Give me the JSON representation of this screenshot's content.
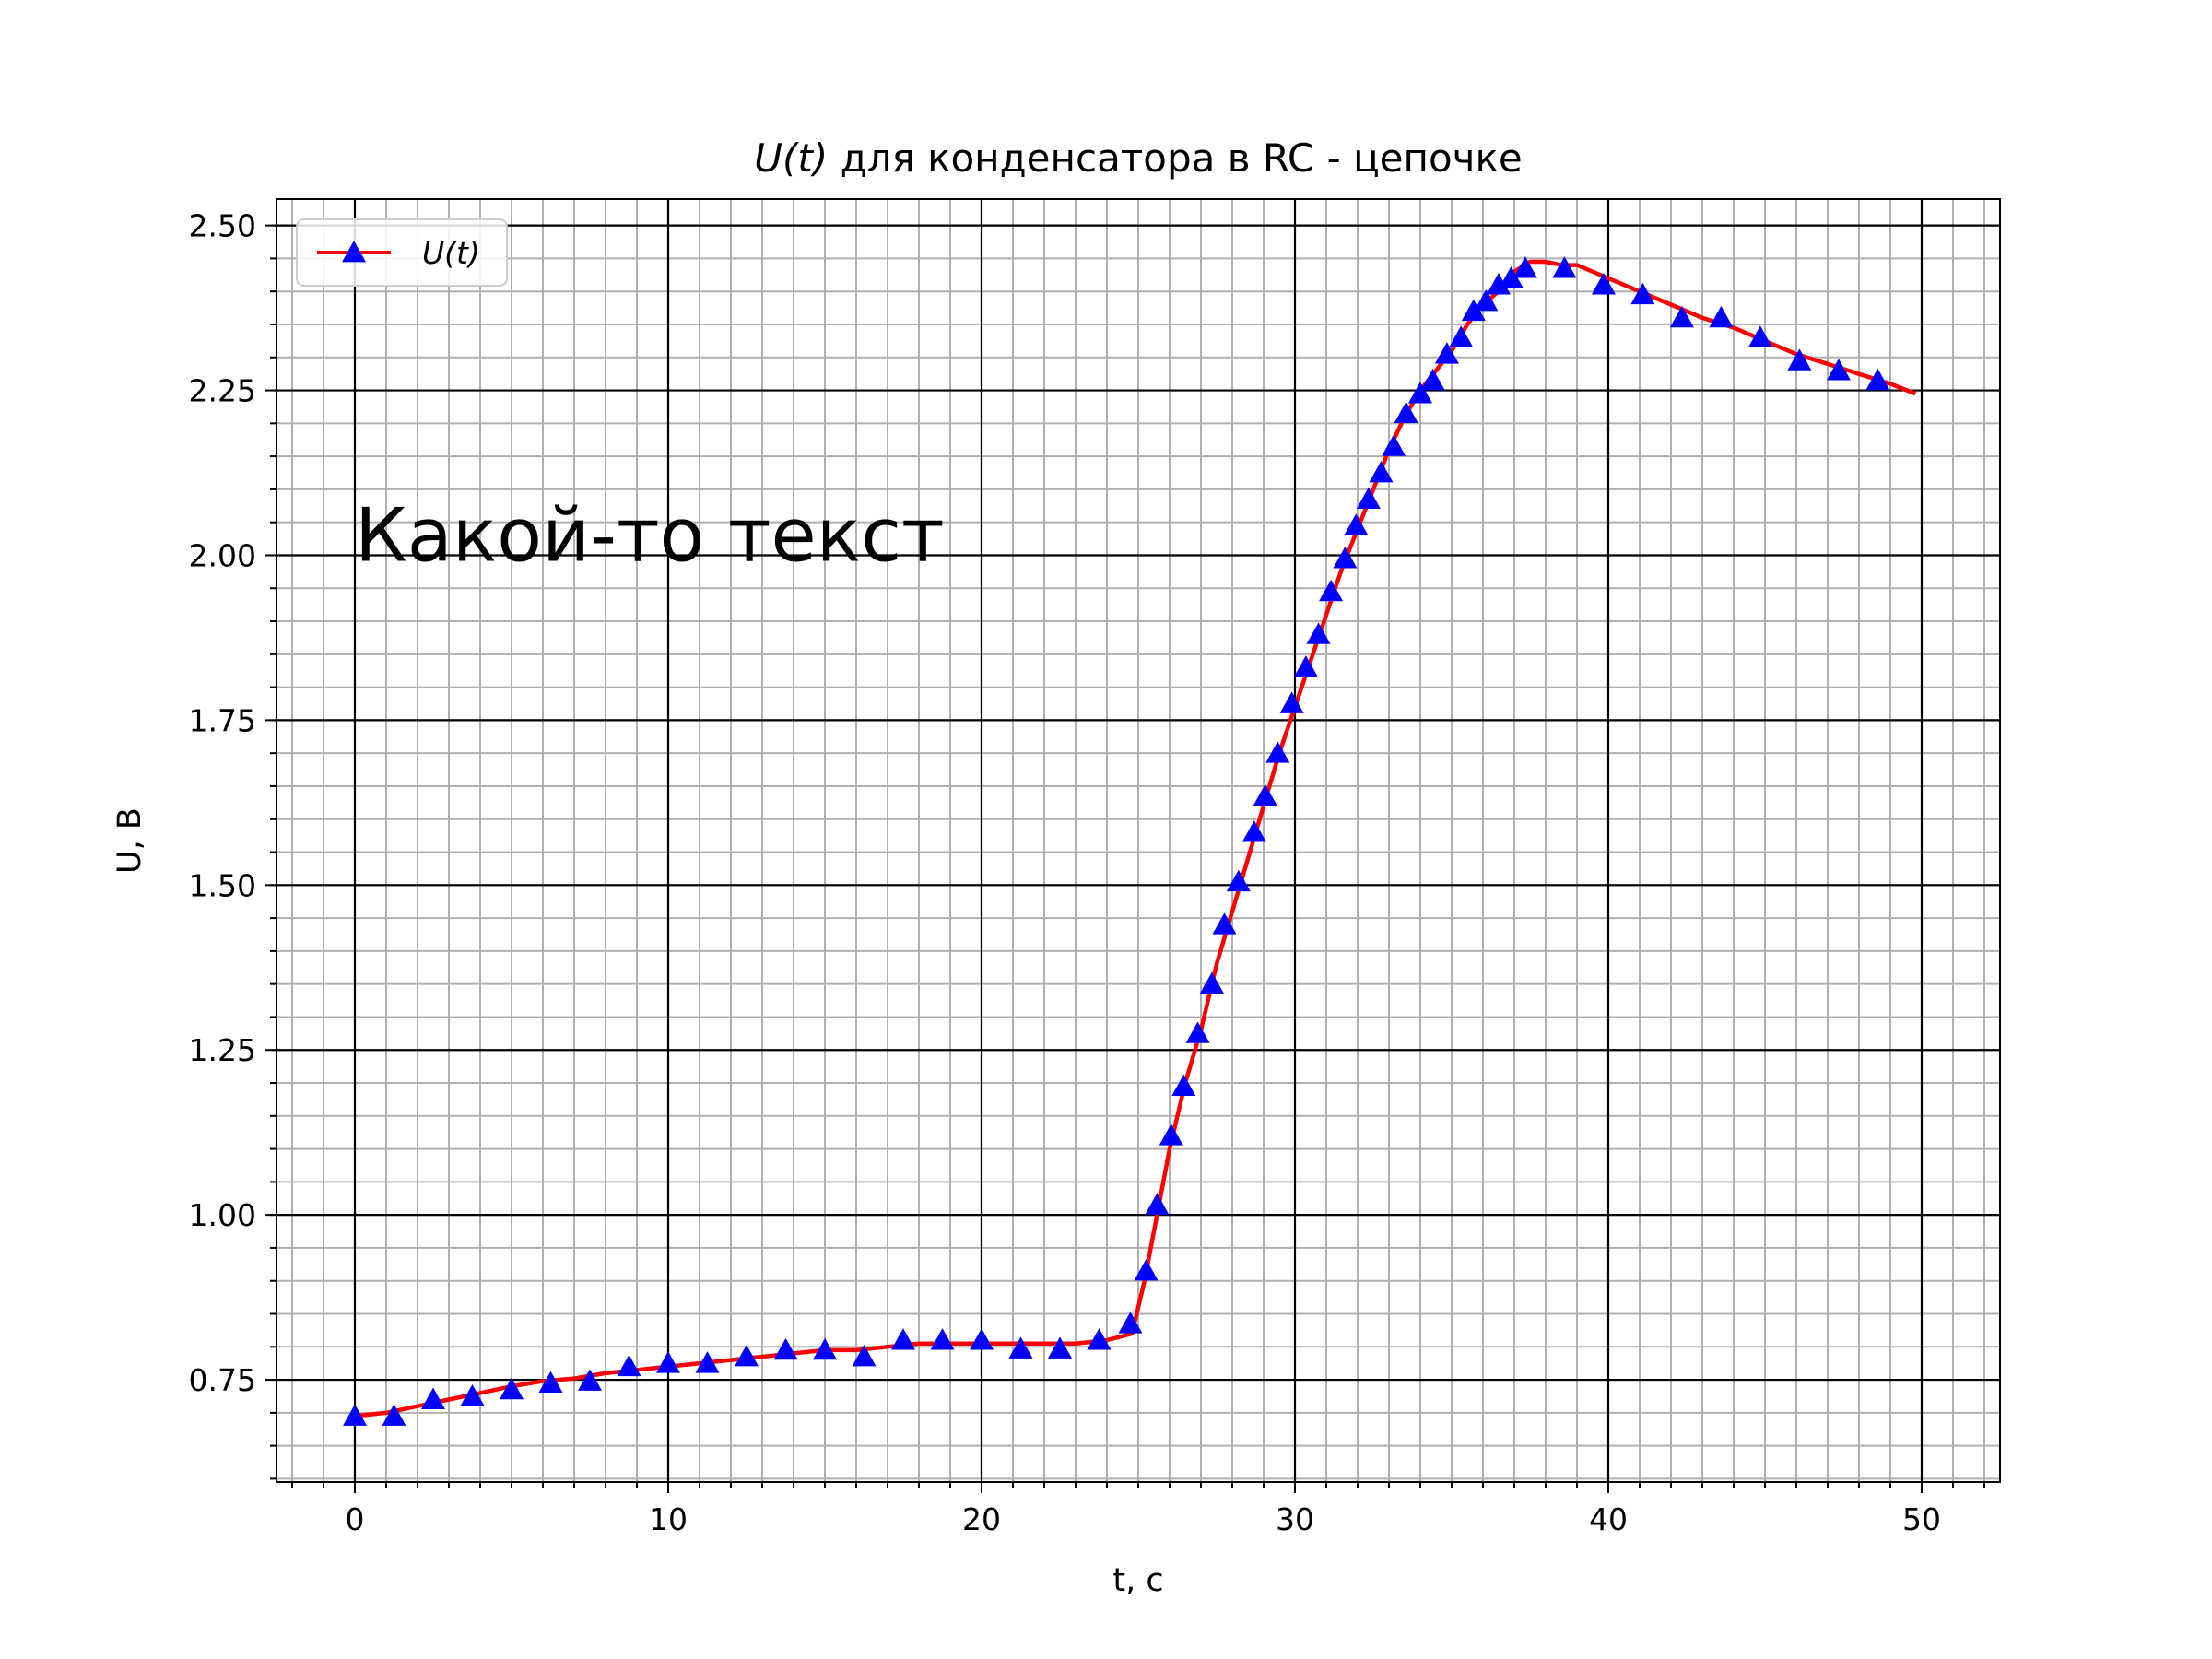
{
  "chart_data": {
    "type": "line",
    "title_math": "U(t)",
    "title_rest": " для конденсатора в RC - цепочке",
    "xlabel": "t, с",
    "ylabel": "U, В",
    "annotation": "Какой-то текст",
    "annotation_pos": [
      0,
      2.0
    ],
    "xlim": [
      -2.5,
      52.5
    ],
    "ylim": [
      0.595,
      2.54
    ],
    "x_major_ticks": [
      0,
      10,
      20,
      30,
      40,
      50
    ],
    "y_major_ticks": [
      0.75,
      1.0,
      1.25,
      1.5,
      1.75,
      2.0,
      2.25,
      2.5
    ],
    "x_tick_labels": [
      "0",
      "10",
      "20",
      "30",
      "40",
      "50"
    ],
    "y_tick_labels": [
      "0.75",
      "1.00",
      "1.25",
      "1.50",
      "1.75",
      "2.00",
      "2.25",
      "2.50"
    ],
    "minor_step_x": 1,
    "minor_step_y": 0.05,
    "grid": true,
    "legend_location": "upper-left",
    "series": [
      {
        "name": "U(t)",
        "line_color": "#ff0000",
        "marker": "triangle-up",
        "marker_color": "#0000ff",
        "points": [
          [
            0,
            0.695
          ],
          [
            1,
            0.7
          ],
          [
            2,
            0.71
          ],
          [
            3,
            0.72
          ],
          [
            4,
            0.73
          ],
          [
            5,
            0.74
          ],
          [
            6,
            0.748
          ],
          [
            7,
            0.752
          ],
          [
            8,
            0.76
          ],
          [
            9,
            0.765
          ],
          [
            10,
            0.77
          ],
          [
            11,
            0.775
          ],
          [
            12,
            0.78
          ],
          [
            13,
            0.785
          ],
          [
            14,
            0.79
          ],
          [
            15,
            0.795
          ],
          [
            16,
            0.795
          ],
          [
            17,
            0.8
          ],
          [
            18,
            0.805
          ],
          [
            19,
            0.805
          ],
          [
            20,
            0.805
          ],
          [
            21,
            0.805
          ],
          [
            22,
            0.805
          ],
          [
            23,
            0.805
          ],
          [
            24,
            0.81
          ],
          [
            24.8,
            0.82
          ],
          [
            25.2,
            0.9
          ],
          [
            25.6,
            1.0
          ],
          [
            26.0,
            1.1
          ],
          [
            26.5,
            1.2
          ],
          [
            27.0,
            1.28
          ],
          [
            27.5,
            1.38
          ],
          [
            28.0,
            1.46
          ],
          [
            28.5,
            1.54
          ],
          [
            29.0,
            1.62
          ],
          [
            29.5,
            1.7
          ],
          [
            30.0,
            1.77
          ],
          [
            30.5,
            1.84
          ],
          [
            31.0,
            1.91
          ],
          [
            31.5,
            1.98
          ],
          [
            32.0,
            2.04
          ],
          [
            32.5,
            2.1
          ],
          [
            33.0,
            2.16
          ],
          [
            33.5,
            2.21
          ],
          [
            34.0,
            2.25
          ],
          [
            34.5,
            2.28
          ],
          [
            35.0,
            2.31
          ],
          [
            35.5,
            2.35
          ],
          [
            36.0,
            2.38
          ],
          [
            36.5,
            2.4
          ],
          [
            37.0,
            2.43
          ],
          [
            37.5,
            2.445
          ],
          [
            38.0,
            2.445
          ],
          [
            38.5,
            2.44
          ],
          [
            39.0,
            2.44
          ],
          [
            39.5,
            2.43
          ],
          [
            40.0,
            2.42
          ],
          [
            41.0,
            2.4
          ],
          [
            42.0,
            2.38
          ],
          [
            43.0,
            2.36
          ],
          [
            44.0,
            2.345
          ],
          [
            45.0,
            2.325
          ],
          [
            46.0,
            2.305
          ],
          [
            47.0,
            2.29
          ],
          [
            48.0,
            2.275
          ],
          [
            49.0,
            2.26
          ],
          [
            49.8,
            2.245
          ]
        ],
        "markers": [
          [
            0,
            0.695
          ],
          [
            1.25,
            0.695
          ],
          [
            2.5,
            0.72
          ],
          [
            3.75,
            0.725
          ],
          [
            5,
            0.735
          ],
          [
            6.25,
            0.745
          ],
          [
            7.5,
            0.748
          ],
          [
            8.75,
            0.77
          ],
          [
            10,
            0.775
          ],
          [
            11.25,
            0.775
          ],
          [
            12.5,
            0.785
          ],
          [
            13.75,
            0.795
          ],
          [
            15,
            0.795
          ],
          [
            16.25,
            0.785
          ],
          [
            17.5,
            0.81
          ],
          [
            18.75,
            0.81
          ],
          [
            20,
            0.81
          ],
          [
            21.25,
            0.797
          ],
          [
            22.5,
            0.797
          ],
          [
            23.75,
            0.81
          ],
          [
            24.75,
            0.835
          ],
          [
            25.25,
            0.915
          ],
          [
            25.6,
            1.015
          ],
          [
            26.05,
            1.12
          ],
          [
            26.45,
            1.195
          ],
          [
            26.9,
            1.275
          ],
          [
            27.35,
            1.35
          ],
          [
            27.75,
            1.44
          ],
          [
            28.2,
            1.505
          ],
          [
            28.7,
            1.58
          ],
          [
            29.05,
            1.635
          ],
          [
            29.45,
            1.7
          ],
          [
            29.9,
            1.775
          ],
          [
            30.35,
            1.83
          ],
          [
            30.75,
            1.88
          ],
          [
            31.15,
            1.945
          ],
          [
            31.6,
            1.995
          ],
          [
            31.95,
            2.045
          ],
          [
            32.35,
            2.085
          ],
          [
            32.75,
            2.125
          ],
          [
            33.15,
            2.165
          ],
          [
            33.55,
            2.215
          ],
          [
            34.0,
            2.245
          ],
          [
            34.4,
            2.265
          ],
          [
            34.85,
            2.305
          ],
          [
            35.3,
            2.33
          ],
          [
            35.7,
            2.37
          ],
          [
            36.1,
            2.385
          ],
          [
            36.5,
            2.41
          ],
          [
            36.9,
            2.42
          ],
          [
            37.35,
            2.435
          ],
          [
            38.6,
            2.435
          ],
          [
            39.85,
            2.41
          ],
          [
            41.1,
            2.395
          ],
          [
            42.35,
            2.36
          ],
          [
            43.6,
            2.36
          ],
          [
            44.85,
            2.33
          ],
          [
            46.1,
            2.295
          ],
          [
            47.35,
            2.28
          ],
          [
            48.6,
            2.265
          ]
        ]
      }
    ]
  }
}
